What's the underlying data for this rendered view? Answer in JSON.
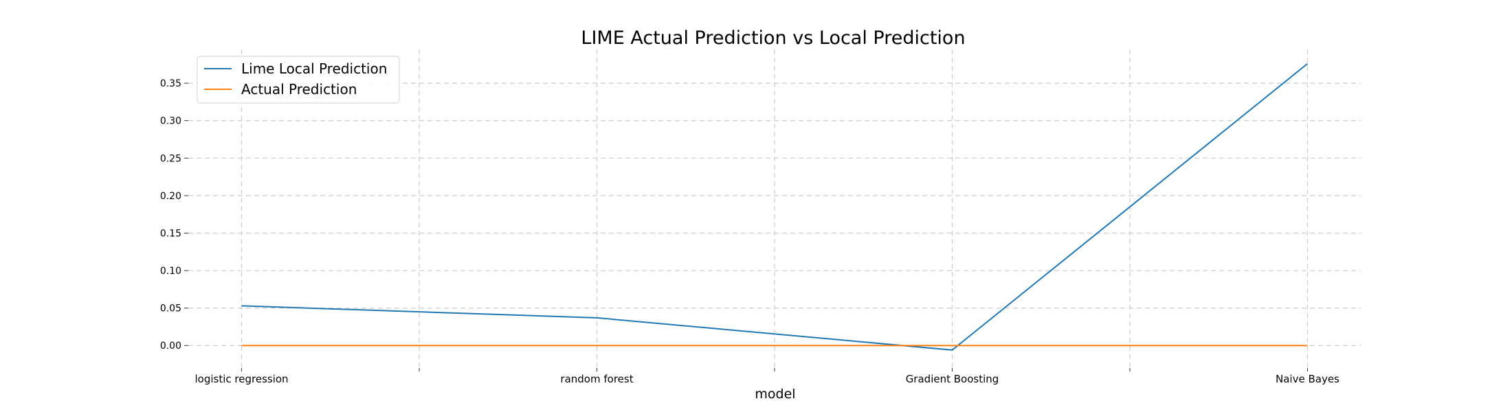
{
  "chart_data": {
    "type": "line",
    "title": "LIME Actual Prediction vs Local Prediction",
    "xlabel": "model",
    "ylabel": "",
    "categories": [
      "logistic regression",
      "random forest",
      "Gradient Boosting",
      "Naive Bayes"
    ],
    "series": [
      {
        "name": "Lime Local Prediction",
        "color": "#1f77b4",
        "values": [
          0.053,
          0.037,
          -0.006,
          0.376
        ]
      },
      {
        "name": "Actual Prediction",
        "color": "#ff7f0e",
        "values": [
          0.0,
          0.0,
          0.0,
          0.0
        ]
      }
    ],
    "x_range": [
      -0.15,
      3.15
    ],
    "ylim": [
      -0.03,
      0.395
    ],
    "yticks": [
      0.0,
      0.05,
      0.1,
      0.15,
      0.2,
      0.25,
      0.3,
      0.35
    ],
    "ytick_labels": [
      "0.00",
      "0.05",
      "0.10",
      "0.15",
      "0.20",
      "0.25",
      "0.30",
      "0.35"
    ],
    "xticks": [
      0,
      0.5,
      1,
      1.5,
      2,
      2.5,
      3
    ],
    "grid": true,
    "legend_position": "upper-left"
  }
}
